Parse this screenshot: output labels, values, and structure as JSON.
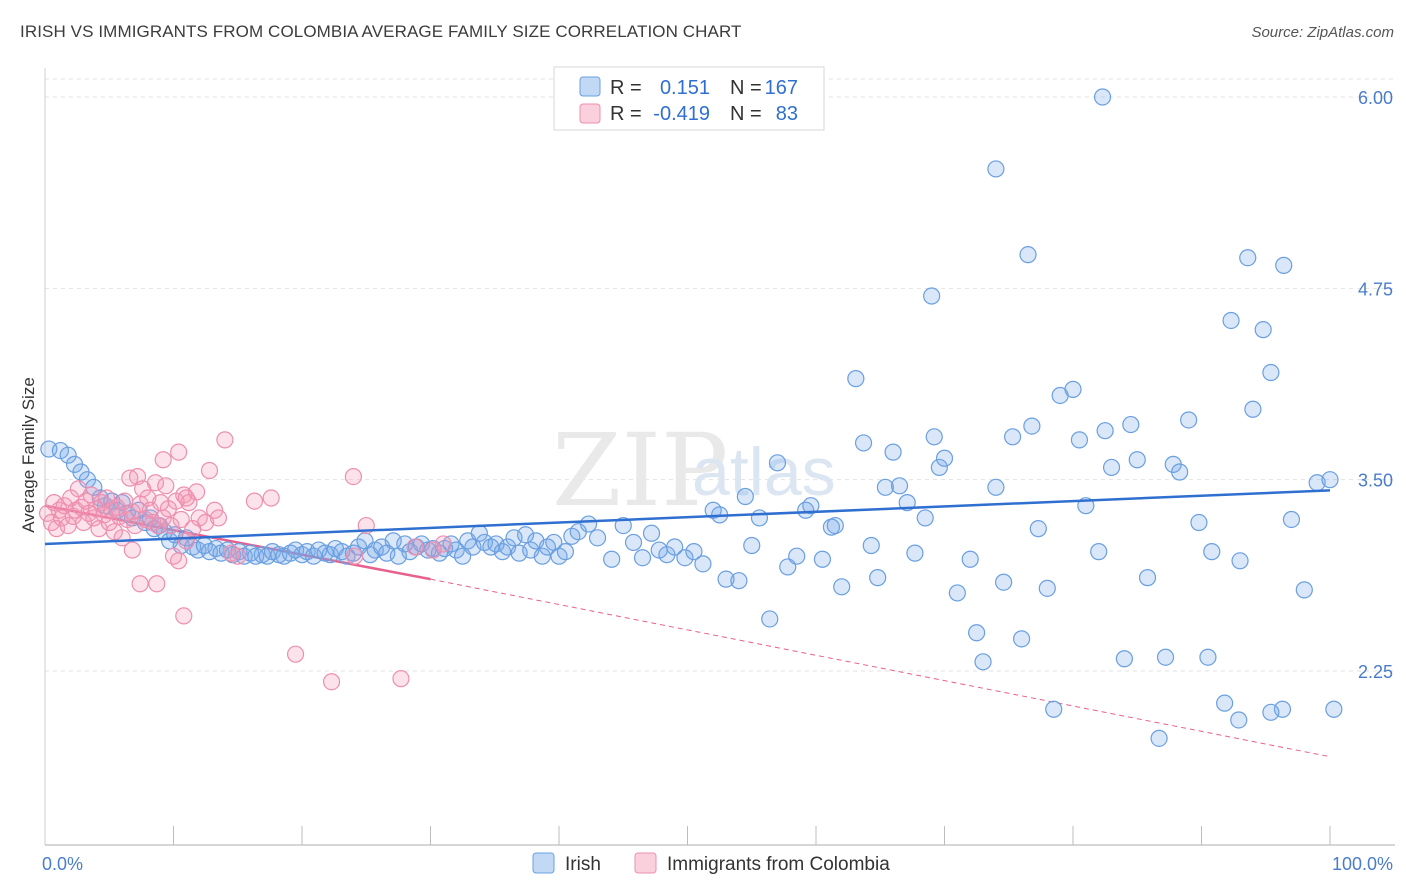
{
  "title": "IRISH VS IMMIGRANTS FROM COLOMBIA AVERAGE FAMILY SIZE CORRELATION CHART",
  "source": "Source: ZipAtlas.com",
  "watermark": {
    "zip": "ZIP",
    "atlas": "atlas"
  },
  "legend": {
    "rows": [
      {
        "r_label": "R =",
        "r_value": "0.151",
        "n_label": "N =",
        "n_value": "167"
      },
      {
        "r_label": "R =",
        "r_value": "-0.419",
        "n_label": "N =",
        "n_value": "83"
      }
    ]
  },
  "bottom_legend": [
    "Irish",
    "Immigrants from Colombia"
  ],
  "colors": {
    "irish_fill": "rgba(120,170,235,0.28)",
    "irish_stroke": "#6a9fe0",
    "irish_line": "#2f6fd0",
    "colombia_fill": "rgba(245,150,180,0.28)",
    "colombia_stroke": "#ee8fb0",
    "colombia_line": "#e8608e",
    "tick_text": "#4a7cc9",
    "grid": "#e2e2e2"
  },
  "chart_data": {
    "type": "scatter",
    "xlabel": "",
    "ylabel": "Average Family Size",
    "xlim": [
      0,
      100
    ],
    "ylim": [
      1.05,
      6.15
    ],
    "x_tick_labels": [
      "0.0%",
      "100.0%"
    ],
    "y_ticks": [
      2.25,
      3.5,
      4.75,
      6.0
    ],
    "y_tick_labels": [
      "2.25",
      "3.50",
      "4.75",
      "6.00"
    ],
    "grid": "horizontal dashed",
    "legend_position": "top-center",
    "series": [
      {
        "name": "Irish",
        "r": 0.151,
        "n": 167,
        "trend": {
          "x": [
            0,
            100
          ],
          "y": [
            3.08,
            3.43
          ]
        },
        "points": [
          [
            0.3,
            3.7
          ],
          [
            1.2,
            3.69
          ],
          [
            1.8,
            3.66
          ],
          [
            2.3,
            3.6
          ],
          [
            2.8,
            3.55
          ],
          [
            3.3,
            3.5
          ],
          [
            3.8,
            3.45
          ],
          [
            4.3,
            3.38
          ],
          [
            4.7,
            3.33
          ],
          [
            5.2,
            3.36
          ],
          [
            5.6,
            3.3
          ],
          [
            6.0,
            3.35
          ],
          [
            6.4,
            3.28
          ],
          [
            6.8,
            3.25
          ],
          [
            7.3,
            3.3
          ],
          [
            7.8,
            3.22
          ],
          [
            8.2,
            3.25
          ],
          [
            8.5,
            3.18
          ],
          [
            8.9,
            3.2
          ],
          [
            9.3,
            3.16
          ],
          [
            9.7,
            3.1
          ],
          [
            10.1,
            3.14
          ],
          [
            10.6,
            3.07
          ],
          [
            11.0,
            3.12
          ],
          [
            11.5,
            3.06
          ],
          [
            11.9,
            3.04
          ],
          [
            12.4,
            3.07
          ],
          [
            12.8,
            3.03
          ],
          [
            13.3,
            3.05
          ],
          [
            13.7,
            3.02
          ],
          [
            14.2,
            3.04
          ],
          [
            14.6,
            3.01
          ],
          [
            15.1,
            3.03
          ],
          [
            15.5,
            3.0
          ],
          [
            16.0,
            3.02
          ],
          [
            16.4,
            3.0
          ],
          [
            16.9,
            3.01
          ],
          [
            17.3,
            3.0
          ],
          [
            17.7,
            3.03
          ],
          [
            18.2,
            3.01
          ],
          [
            18.6,
            3.0
          ],
          [
            19.1,
            3.02
          ],
          [
            19.5,
            3.04
          ],
          [
            20.0,
            3.01
          ],
          [
            20.4,
            3.03
          ],
          [
            20.9,
            3.0
          ],
          [
            21.3,
            3.04
          ],
          [
            21.8,
            3.02
          ],
          [
            22.2,
            3.01
          ],
          [
            22.6,
            3.05
          ],
          [
            23.1,
            3.03
          ],
          [
            23.5,
            3.0
          ],
          [
            24.0,
            3.02
          ],
          [
            24.4,
            3.06
          ],
          [
            24.9,
            3.1
          ],
          [
            25.3,
            3.01
          ],
          [
            25.7,
            3.04
          ],
          [
            26.2,
            3.06
          ],
          [
            26.6,
            3.02
          ],
          [
            27.1,
            3.1
          ],
          [
            27.5,
            3.0
          ],
          [
            28.0,
            3.08
          ],
          [
            28.4,
            3.03
          ],
          [
            28.9,
            3.06
          ],
          [
            29.3,
            3.08
          ],
          [
            29.8,
            3.04
          ],
          [
            30.2,
            3.05
          ],
          [
            30.7,
            3.02
          ],
          [
            31.1,
            3.05
          ],
          [
            31.6,
            3.08
          ],
          [
            32.0,
            3.04
          ],
          [
            32.5,
            3.0
          ],
          [
            32.9,
            3.1
          ],
          [
            33.3,
            3.06
          ],
          [
            33.8,
            3.15
          ],
          [
            34.2,
            3.09
          ],
          [
            34.7,
            3.06
          ],
          [
            35.1,
            3.08
          ],
          [
            35.6,
            3.03
          ],
          [
            36.0,
            3.06
          ],
          [
            36.5,
            3.12
          ],
          [
            36.9,
            3.02
          ],
          [
            37.4,
            3.14
          ],
          [
            37.8,
            3.04
          ],
          [
            38.2,
            3.1
          ],
          [
            38.7,
            3.0
          ],
          [
            39.1,
            3.06
          ],
          [
            39.6,
            3.09
          ],
          [
            40.0,
            3.0
          ],
          [
            40.5,
            3.03
          ],
          [
            41.0,
            3.13
          ],
          [
            41.5,
            3.16
          ],
          [
            42.3,
            3.21
          ],
          [
            43.0,
            3.12
          ],
          [
            44.1,
            2.98
          ],
          [
            45.0,
            3.2
          ],
          [
            45.8,
            3.09
          ],
          [
            46.5,
            2.99
          ],
          [
            47.2,
            3.15
          ],
          [
            47.8,
            3.04
          ],
          [
            48.4,
            3.01
          ],
          [
            49.0,
            3.06
          ],
          [
            49.8,
            2.99
          ],
          [
            50.5,
            3.03
          ],
          [
            51.2,
            2.95
          ],
          [
            52.0,
            3.3
          ],
          [
            52.5,
            3.27
          ],
          [
            53.0,
            2.85
          ],
          [
            54.0,
            2.84
          ],
          [
            54.5,
            3.39
          ],
          [
            55.0,
            3.07
          ],
          [
            55.6,
            3.25
          ],
          [
            56.4,
            2.59
          ],
          [
            57.0,
            3.61
          ],
          [
            57.8,
            2.93
          ],
          [
            58.5,
            3.0
          ],
          [
            59.2,
            3.3
          ],
          [
            59.6,
            3.33
          ],
          [
            60.5,
            2.98
          ],
          [
            61.2,
            3.19
          ],
          [
            61.5,
            3.2
          ],
          [
            62.0,
            2.8
          ],
          [
            63.1,
            4.16
          ],
          [
            63.7,
            3.74
          ],
          [
            64.3,
            3.07
          ],
          [
            64.8,
            2.86
          ],
          [
            65.4,
            3.45
          ],
          [
            66.0,
            3.68
          ],
          [
            66.5,
            3.46
          ],
          [
            67.1,
            3.35
          ],
          [
            67.7,
            3.02
          ],
          [
            68.5,
            3.25
          ],
          [
            69.2,
            3.78
          ],
          [
            69.6,
            3.58
          ],
          [
            70.0,
            3.64
          ],
          [
            71.0,
            2.76
          ],
          [
            72.0,
            2.98
          ],
          [
            72.5,
            2.5
          ],
          [
            73.0,
            2.31
          ],
          [
            74.0,
            3.45
          ],
          [
            74.6,
            2.83
          ],
          [
            75.3,
            3.78
          ],
          [
            76.0,
            2.46
          ],
          [
            76.8,
            3.85
          ],
          [
            77.3,
            3.18
          ],
          [
            78.0,
            2.79
          ],
          [
            78.5,
            2.0
          ],
          [
            79.0,
            4.05
          ],
          [
            80.0,
            4.09
          ],
          [
            80.5,
            3.76
          ],
          [
            81.0,
            3.33
          ],
          [
            82.0,
            3.03
          ],
          [
            82.5,
            3.82
          ],
          [
            83.0,
            3.58
          ],
          [
            84.0,
            2.33
          ],
          [
            84.5,
            3.86
          ],
          [
            85.0,
            3.63
          ],
          [
            85.8,
            2.86
          ],
          [
            86.7,
            1.81
          ],
          [
            87.2,
            2.34
          ],
          [
            87.8,
            3.6
          ],
          [
            88.3,
            3.55
          ],
          [
            89.0,
            3.89
          ],
          [
            89.8,
            3.22
          ],
          [
            90.5,
            2.34
          ],
          [
            91.8,
            2.04
          ],
          [
            92.3,
            4.54
          ],
          [
            93.0,
            2.97
          ],
          [
            94.0,
            3.96
          ],
          [
            94.8,
            4.48
          ],
          [
            95.4,
            4.2
          ],
          [
            96.3,
            2.0
          ],
          [
            97.0,
            3.24
          ],
          [
            98.0,
            2.78
          ],
          [
            99.0,
            3.48
          ],
          [
            100.0,
            3.5
          ],
          [
            82.3,
            6.0
          ],
          [
            74.0,
            5.53
          ],
          [
            76.5,
            4.97
          ],
          [
            93.6,
            4.95
          ],
          [
            96.4,
            4.9
          ],
          [
            69.0,
            4.7
          ],
          [
            90.8,
            3.03
          ],
          [
            92.9,
            1.93
          ],
          [
            95.4,
            1.98
          ],
          [
            100.3,
            2.0
          ]
        ]
      },
      {
        "name": "Immigrants from Colombia",
        "r": -0.419,
        "n": 83,
        "trend": {
          "x": [
            0,
            30
          ],
          "y": [
            3.33,
            2.85
          ]
        },
        "trend_dashed": {
          "x": [
            30,
            100
          ],
          "y": [
            2.85,
            1.69
          ]
        },
        "points": [
          [
            0.2,
            3.28
          ],
          [
            0.5,
            3.22
          ],
          [
            0.7,
            3.35
          ],
          [
            0.9,
            3.18
          ],
          [
            1.1,
            3.3
          ],
          [
            1.3,
            3.25
          ],
          [
            1.5,
            3.33
          ],
          [
            1.8,
            3.2
          ],
          [
            2.0,
            3.38
          ],
          [
            2.2,
            3.26
          ],
          [
            2.4,
            3.3
          ],
          [
            2.6,
            3.44
          ],
          [
            2.8,
            3.32
          ],
          [
            3.0,
            3.22
          ],
          [
            3.2,
            3.36
          ],
          [
            3.4,
            3.28
          ],
          [
            3.6,
            3.4
          ],
          [
            3.8,
            3.25
          ],
          [
            4.0,
            3.31
          ],
          [
            4.2,
            3.18
          ],
          [
            4.4,
            3.35
          ],
          [
            4.6,
            3.27
          ],
          [
            4.8,
            3.38
          ],
          [
            5.0,
            3.22
          ],
          [
            5.2,
            3.3
          ],
          [
            5.4,
            3.16
          ],
          [
            5.6,
            3.32
          ],
          [
            5.8,
            3.26
          ],
          [
            6.0,
            3.12
          ],
          [
            6.2,
            3.36
          ],
          [
            6.4,
            3.24
          ],
          [
            6.6,
            3.51
          ],
          [
            6.8,
            3.29
          ],
          [
            7.0,
            3.2
          ],
          [
            7.2,
            3.52
          ],
          [
            7.4,
            3.34
          ],
          [
            7.6,
            3.44
          ],
          [
            7.8,
            3.24
          ],
          [
            8.0,
            3.38
          ],
          [
            8.2,
            3.3
          ],
          [
            8.4,
            3.22
          ],
          [
            8.6,
            3.48
          ],
          [
            8.8,
            3.2
          ],
          [
            9.0,
            3.35
          ],
          [
            9.2,
            3.25
          ],
          [
            9.4,
            3.46
          ],
          [
            9.6,
            3.31
          ],
          [
            9.8,
            3.2
          ],
          [
            10.0,
            3.0
          ],
          [
            10.2,
            3.36
          ],
          [
            10.4,
            3.68
          ],
          [
            10.6,
            3.24
          ],
          [
            10.8,
            3.4
          ],
          [
            11.0,
            3.1
          ],
          [
            11.2,
            3.35
          ],
          [
            11.5,
            3.18
          ],
          [
            11.8,
            3.42
          ],
          [
            12.0,
            3.25
          ],
          [
            12.5,
            3.22
          ],
          [
            12.8,
            3.56
          ],
          [
            13.2,
            3.3
          ],
          [
            14.0,
            3.76
          ],
          [
            14.5,
            3.02
          ],
          [
            15.0,
            3.0
          ],
          [
            16.3,
            3.36
          ],
          [
            17.6,
            3.38
          ],
          [
            19.5,
            2.36
          ],
          [
            22.3,
            2.18
          ],
          [
            24.1,
            3.0
          ],
          [
            25.0,
            3.2
          ],
          [
            27.7,
            2.2
          ],
          [
            28.8,
            3.06
          ],
          [
            30.2,
            3.04
          ],
          [
            31.0,
            3.08
          ],
          [
            9.2,
            3.63
          ],
          [
            7.4,
            2.82
          ],
          [
            8.7,
            2.82
          ],
          [
            10.4,
            2.97
          ],
          [
            10.8,
            2.61
          ],
          [
            24.0,
            3.52
          ],
          [
            6.8,
            3.04
          ],
          [
            11.0,
            3.38
          ],
          [
            13.5,
            3.25
          ]
        ]
      }
    ]
  }
}
